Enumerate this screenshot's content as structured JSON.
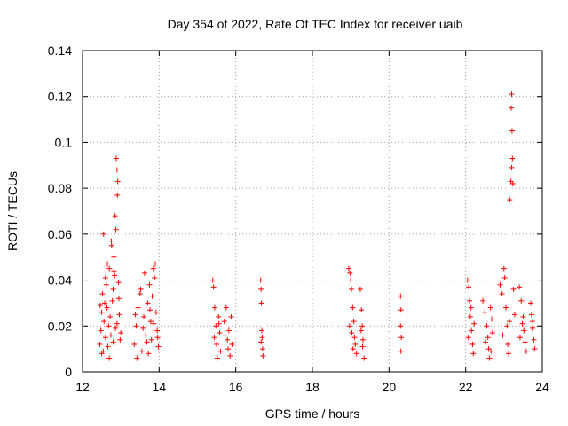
{
  "chart_data": {
    "type": "scatter",
    "title": "Day 354 of 2022, Rate Of TEC Index for receiver uaib",
    "xlabel": "GPS time / hours",
    "ylabel": "ROTI / TECUs",
    "xlim": [
      12,
      24
    ],
    "ylim": [
      0,
      0.14
    ],
    "x_ticks": [
      "12",
      "14",
      "16",
      "18",
      "20",
      "22",
      "24"
    ],
    "y_ticks": [
      "0",
      "0.02",
      "0.04",
      "0.06",
      "0.08",
      "0.1",
      "0.12",
      "0.14"
    ],
    "grid": true,
    "legend": "none",
    "marker": "plus",
    "color": "#ff0000",
    "series": [
      {
        "points": [
          [
            12.45,
            0.012
          ],
          [
            12.48,
            0.018
          ],
          [
            12.5,
            0.026
          ],
          [
            12.52,
            0.034
          ],
          [
            12.54,
            0.009
          ],
          [
            12.56,
            0.022
          ],
          [
            12.58,
            0.03
          ],
          [
            12.6,
            0.015
          ],
          [
            12.62,
            0.038
          ],
          [
            12.64,
            0.028
          ],
          [
            12.66,
            0.011
          ],
          [
            12.68,
            0.02
          ],
          [
            12.7,
            0.045
          ],
          [
            12.72,
            0.024
          ],
          [
            12.74,
            0.016
          ],
          [
            12.76,
            0.055
          ],
          [
            12.78,
            0.031
          ],
          [
            12.8,
            0.013
          ],
          [
            12.82,
            0.05
          ],
          [
            12.84,
            0.042
          ],
          [
            12.86,
            0.019
          ],
          [
            12.88,
            0.093
          ],
          [
            12.9,
            0.088
          ],
          [
            12.91,
            0.077
          ],
          [
            12.85,
            0.068
          ],
          [
            12.87,
            0.062
          ],
          [
            12.92,
            0.083
          ],
          [
            12.94,
            0.039
          ],
          [
            12.96,
            0.025
          ],
          [
            12.98,
            0.014
          ],
          [
            12.5,
            0.008
          ],
          [
            12.6,
            0.041
          ],
          [
            12.7,
            0.006
          ],
          [
            12.8,
            0.036
          ],
          [
            12.9,
            0.021
          ],
          [
            13.0,
            0.017
          ],
          [
            12.55,
            0.06
          ],
          [
            12.65,
            0.047
          ],
          [
            12.75,
            0.057
          ],
          [
            12.82,
            0.044
          ],
          [
            12.46,
            0.029
          ],
          [
            12.95,
            0.032
          ],
          [
            13.35,
            0.012
          ],
          [
            13.4,
            0.02
          ],
          [
            13.45,
            0.028
          ],
          [
            13.5,
            0.034
          ],
          [
            13.55,
            0.009
          ],
          [
            13.6,
            0.024
          ],
          [
            13.65,
            0.016
          ],
          [
            13.7,
            0.03
          ],
          [
            13.75,
            0.038
          ],
          [
            13.78,
            0.022
          ],
          [
            13.8,
            0.014
          ],
          [
            13.85,
            0.045
          ],
          [
            13.88,
            0.041
          ],
          [
            13.9,
            0.047
          ],
          [
            13.92,
            0.026
          ],
          [
            13.95,
            0.018
          ],
          [
            13.98,
            0.011
          ],
          [
            13.42,
            0.006
          ],
          [
            13.52,
            0.036
          ],
          [
            13.62,
            0.043
          ],
          [
            13.72,
            0.008
          ],
          [
            13.82,
            0.033
          ],
          [
            13.38,
            0.025
          ],
          [
            13.58,
            0.019
          ],
          [
            13.68,
            0.013
          ],
          [
            13.76,
            0.027
          ],
          [
            13.86,
            0.021
          ],
          [
            13.96,
            0.015
          ],
          [
            15.4,
            0.04
          ],
          [
            15.42,
            0.037
          ],
          [
            15.45,
            0.028
          ],
          [
            15.48,
            0.02
          ],
          [
            15.5,
            0.012
          ],
          [
            15.52,
            0.006
          ],
          [
            15.55,
            0.024
          ],
          [
            15.58,
            0.017
          ],
          [
            15.6,
            0.009
          ],
          [
            15.44,
            0.015
          ],
          [
            15.56,
            0.021
          ],
          [
            15.7,
            0.022
          ],
          [
            15.75,
            0.028
          ],
          [
            15.78,
            0.014
          ],
          [
            15.8,
            0.01
          ],
          [
            15.82,
            0.018
          ],
          [
            15.85,
            0.007
          ],
          [
            15.88,
            0.024
          ],
          [
            15.9,
            0.012
          ],
          [
            15.72,
            0.016
          ],
          [
            16.65,
            0.04
          ],
          [
            16.66,
            0.036
          ],
          [
            16.67,
            0.03
          ],
          [
            16.68,
            0.018
          ],
          [
            16.69,
            0.015
          ],
          [
            16.7,
            0.01
          ],
          [
            16.71,
            0.007
          ],
          [
            16.66,
            0.013
          ],
          [
            18.95,
            0.045
          ],
          [
            18.98,
            0.043
          ],
          [
            19.0,
            0.04
          ],
          [
            19.02,
            0.036
          ],
          [
            19.05,
            0.028
          ],
          [
            19.08,
            0.022
          ],
          [
            19.1,
            0.015
          ],
          [
            19.12,
            0.012
          ],
          [
            19.15,
            0.008
          ],
          [
            18.97,
            0.02
          ],
          [
            19.03,
            0.017
          ],
          [
            19.06,
            0.01
          ],
          [
            19.25,
            0.036
          ],
          [
            19.28,
            0.027
          ],
          [
            19.3,
            0.02
          ],
          [
            19.32,
            0.014
          ],
          [
            19.35,
            0.006
          ],
          [
            19.27,
            0.018
          ],
          [
            19.31,
            0.011
          ],
          [
            20.3,
            0.033
          ],
          [
            20.31,
            0.027
          ],
          [
            20.3,
            0.02
          ],
          [
            20.32,
            0.015
          ],
          [
            20.31,
            0.009
          ],
          [
            22.05,
            0.04
          ],
          [
            22.08,
            0.037
          ],
          [
            22.1,
            0.031
          ],
          [
            22.12,
            0.024
          ],
          [
            22.15,
            0.018
          ],
          [
            22.18,
            0.012
          ],
          [
            22.2,
            0.008
          ],
          [
            22.22,
            0.021
          ],
          [
            22.07,
            0.015
          ],
          [
            22.14,
            0.028
          ],
          [
            22.45,
            0.031
          ],
          [
            22.5,
            0.026
          ],
          [
            22.55,
            0.02
          ],
          [
            22.58,
            0.015
          ],
          [
            22.6,
            0.01
          ],
          [
            22.62,
            0.006
          ],
          [
            22.65,
            0.028
          ],
          [
            22.68,
            0.023
          ],
          [
            22.7,
            0.017
          ],
          [
            22.52,
            0.013
          ],
          [
            22.66,
            0.009
          ],
          [
            22.9,
            0.038
          ],
          [
            22.95,
            0.034
          ],
          [
            23.0,
            0.045
          ],
          [
            23.02,
            0.041
          ],
          [
            23.05,
            0.028
          ],
          [
            23.08,
            0.02
          ],
          [
            23.1,
            0.012
          ],
          [
            23.12,
            0.008
          ],
          [
            23.15,
            0.075
          ],
          [
            23.18,
            0.083
          ],
          [
            23.2,
            0.089
          ],
          [
            23.22,
            0.093
          ],
          [
            23.21,
            0.105
          ],
          [
            23.19,
            0.115
          ],
          [
            23.2,
            0.121
          ],
          [
            23.23,
            0.082
          ],
          [
            23.25,
            0.036
          ],
          [
            23.28,
            0.025
          ],
          [
            22.97,
            0.016
          ],
          [
            23.14,
            0.022
          ],
          [
            23.4,
            0.037
          ],
          [
            23.45,
            0.031
          ],
          [
            23.5,
            0.024
          ],
          [
            23.52,
            0.018
          ],
          [
            23.55,
            0.013
          ],
          [
            23.58,
            0.009
          ],
          [
            23.42,
            0.015
          ],
          [
            23.48,
            0.021
          ],
          [
            23.7,
            0.03
          ],
          [
            23.72,
            0.025
          ],
          [
            23.75,
            0.019
          ],
          [
            23.78,
            0.014
          ],
          [
            23.8,
            0.01
          ],
          [
            23.74,
            0.022
          ]
        ]
      }
    ]
  }
}
